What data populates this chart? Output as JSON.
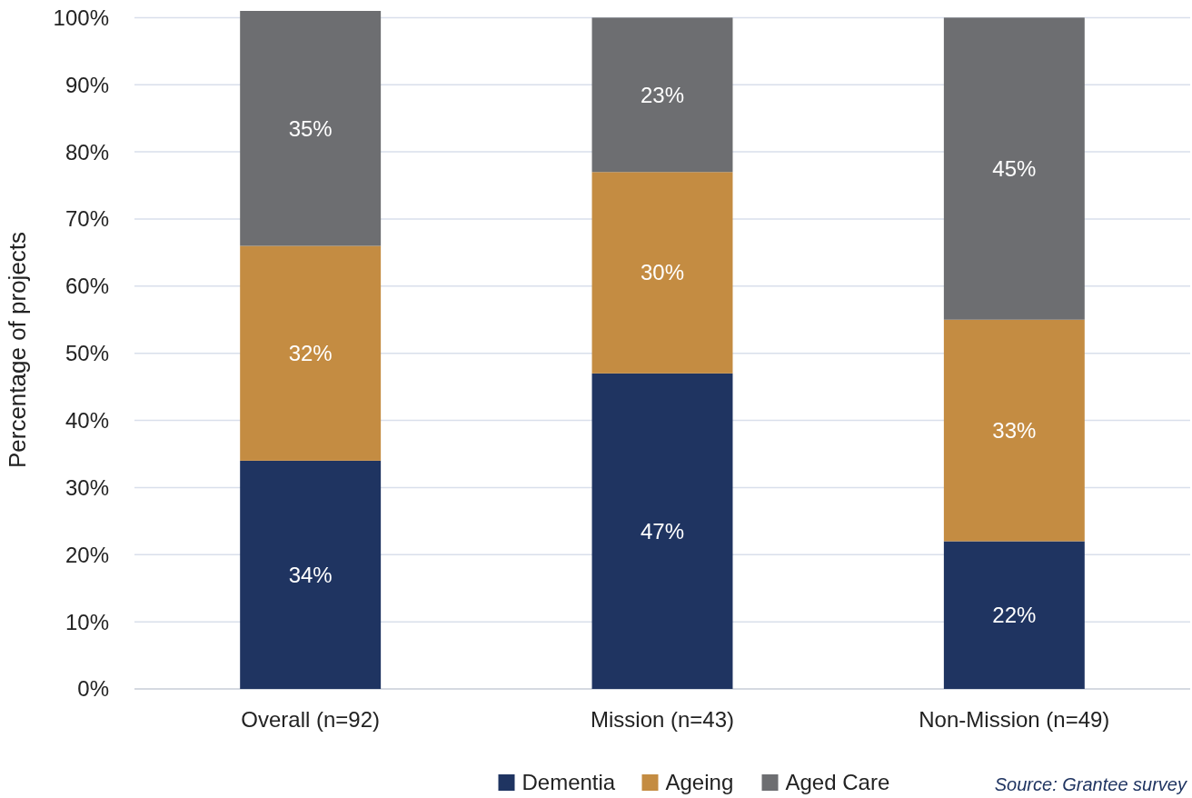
{
  "chart_data": {
    "type": "bar",
    "stacked": true,
    "ylabel": "Percentage of projects",
    "categories": [
      "Overall (n=92)",
      "Mission (n=43)",
      "Non-Mission (n=49)"
    ],
    "series": [
      {
        "name": "Dementia",
        "color": "#1f3461",
        "values": [
          34,
          47,
          22
        ]
      },
      {
        "name": "Ageing",
        "color": "#c48c42",
        "values": [
          32,
          30,
          33
        ]
      },
      {
        "name": "Aged Care",
        "color": "#6d6e71",
        "values": [
          35,
          23,
          45
        ]
      }
    ],
    "value_labels": [
      [
        "34%",
        "47%",
        "22%"
      ],
      [
        "32%",
        "30%",
        "33%"
      ],
      [
        "35%",
        "23%",
        "45%"
      ]
    ],
    "ylim": [
      0,
      101
    ],
    "yticks": [
      {
        "value": 0,
        "label": "0%"
      },
      {
        "value": 10,
        "label": "10%"
      },
      {
        "value": 20,
        "label": "20%"
      },
      {
        "value": 30,
        "label": "30%"
      },
      {
        "value": 40,
        "label": "40%"
      },
      {
        "value": 50,
        "label": "50%"
      },
      {
        "value": 60,
        "label": "60%"
      },
      {
        "value": 70,
        "label": "70%"
      },
      {
        "value": 80,
        "label": "80%"
      },
      {
        "value": 90,
        "label": "90%"
      },
      {
        "value": 100,
        "label": "100%"
      }
    ],
    "grid": "y",
    "legend": "bottom",
    "annotations": [
      "Source: Grantee survey"
    ]
  }
}
